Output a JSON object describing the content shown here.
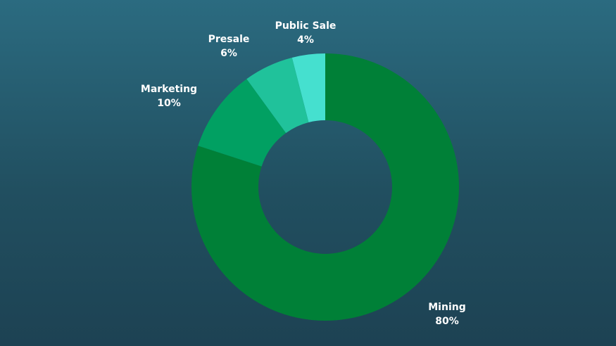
{
  "chart_data": {
    "type": "pie",
    "donut": true,
    "title": "",
    "slices": [
      {
        "label": "Public Sale",
        "value": 4,
        "percent_label": "4%",
        "color": "#45e0cf"
      },
      {
        "label": "Mining",
        "value": 80,
        "percent_label": "80%",
        "color": "#008037"
      },
      {
        "label": "Marketing",
        "value": 10,
        "percent_label": "10%",
        "color": "#01a062"
      },
      {
        "label": "Presale",
        "value": 6,
        "percent_label": "6%",
        "color": "#20c29b"
      }
    ],
    "legend": "none"
  },
  "colors": {
    "label_text": "#ffffff"
  }
}
